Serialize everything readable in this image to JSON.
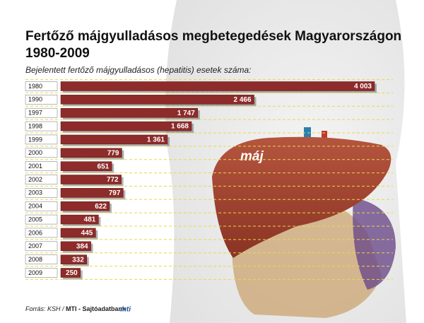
{
  "chart_data": {
    "type": "bar",
    "title": [
      "Fertőző májgyulladásos megbetegedések Magyarországon",
      "1980-2009"
    ],
    "subtitle": "Bejelentett fertőző májgyulladásos (hepatitis) esetek száma:",
    "categories": [
      "1980",
      "1990",
      "1997",
      "1998",
      "1999",
      "2000",
      "2001",
      "2002",
      "2003",
      "2004",
      "2005",
      "2006",
      "2007",
      "2008",
      "2009"
    ],
    "values": [
      4003,
      2466,
      1747,
      1668,
      1361,
      779,
      651,
      772,
      797,
      622,
      481,
      445,
      384,
      332,
      250
    ],
    "value_labels": [
      "4 003",
      "2 466",
      "1 747",
      "1 668",
      "1 361",
      "779",
      "651",
      "772",
      "797",
      "622",
      "481",
      "445",
      "384",
      "332",
      "250"
    ],
    "color": "#8e2b2b",
    "annotation": "máj",
    "source": [
      "Forrás: KSH /",
      "MTI - Sajtóadatbank"
    ],
    "logo": "mti"
  }
}
